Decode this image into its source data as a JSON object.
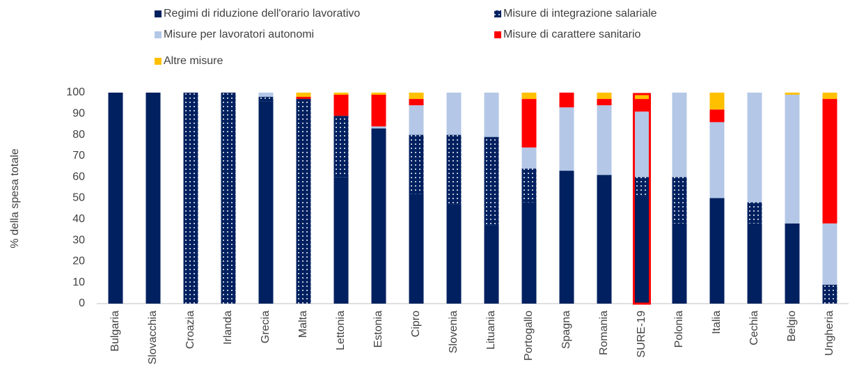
{
  "chart_data": {
    "type": "stacked_bar",
    "y_label": "% della spesa totale",
    "categories": [
      "Bulgaria",
      "Slovacchia",
      "Croazia",
      "Irlanda",
      "Grecia",
      "Malta",
      "Lettonia",
      "Estonia",
      "Cipro",
      "Slovenia",
      "Lituania",
      "Portogallo",
      "Spagna",
      "Romania",
      "SURE-19",
      "Polonia",
      "Italia",
      "Cechia",
      "Belgio",
      "Ungheria"
    ],
    "series": [
      {
        "name": "Regimi di riduzione dell'orario lavorativo",
        "color": "#002060",
        "values": [
          100,
          100,
          0,
          0,
          96,
          0,
          60,
          83,
          52,
          47,
          37,
          48,
          63,
          61,
          51,
          38,
          50,
          38,
          38,
          0
        ]
      },
      {
        "name": "Misure di integrazione salariale",
        "color": "#002060",
        "hatch": "dots",
        "values": [
          0,
          0,
          100,
          100,
          2,
          97,
          29,
          0,
          28,
          33,
          42,
          16,
          0,
          0,
          9,
          22,
          0,
          10,
          0,
          9
        ]
      },
      {
        "name": "Misure per lavoratori autonomi",
        "color": "#b4c7e7",
        "values": [
          0,
          0,
          0,
          0,
          2,
          0,
          0,
          1,
          14,
          20,
          21,
          10,
          30,
          33,
          31,
          40,
          36,
          52,
          61,
          29
        ]
      },
      {
        "name": "Misure di carattere sanitario",
        "color": "#ff0000",
        "values": [
          0,
          0,
          0,
          0,
          0,
          1,
          10,
          15,
          3,
          0,
          0,
          23,
          7,
          3,
          6,
          0,
          6,
          0,
          0,
          59
        ]
      },
      {
        "name": "Altre misure",
        "color": "#ffc000",
        "values": [
          0,
          0,
          0,
          0,
          0,
          2,
          1,
          1,
          3,
          0,
          0,
          3,
          0,
          3,
          2,
          0,
          8,
          0,
          1,
          3
        ]
      }
    ],
    "highlight": "SURE-19",
    "highlight_color": "#ff0000",
    "ylim": [
      0,
      100
    ],
    "yticks": [
      0,
      10,
      20,
      30,
      40,
      50,
      60,
      70,
      80,
      90,
      100
    ],
    "grid": false
  }
}
